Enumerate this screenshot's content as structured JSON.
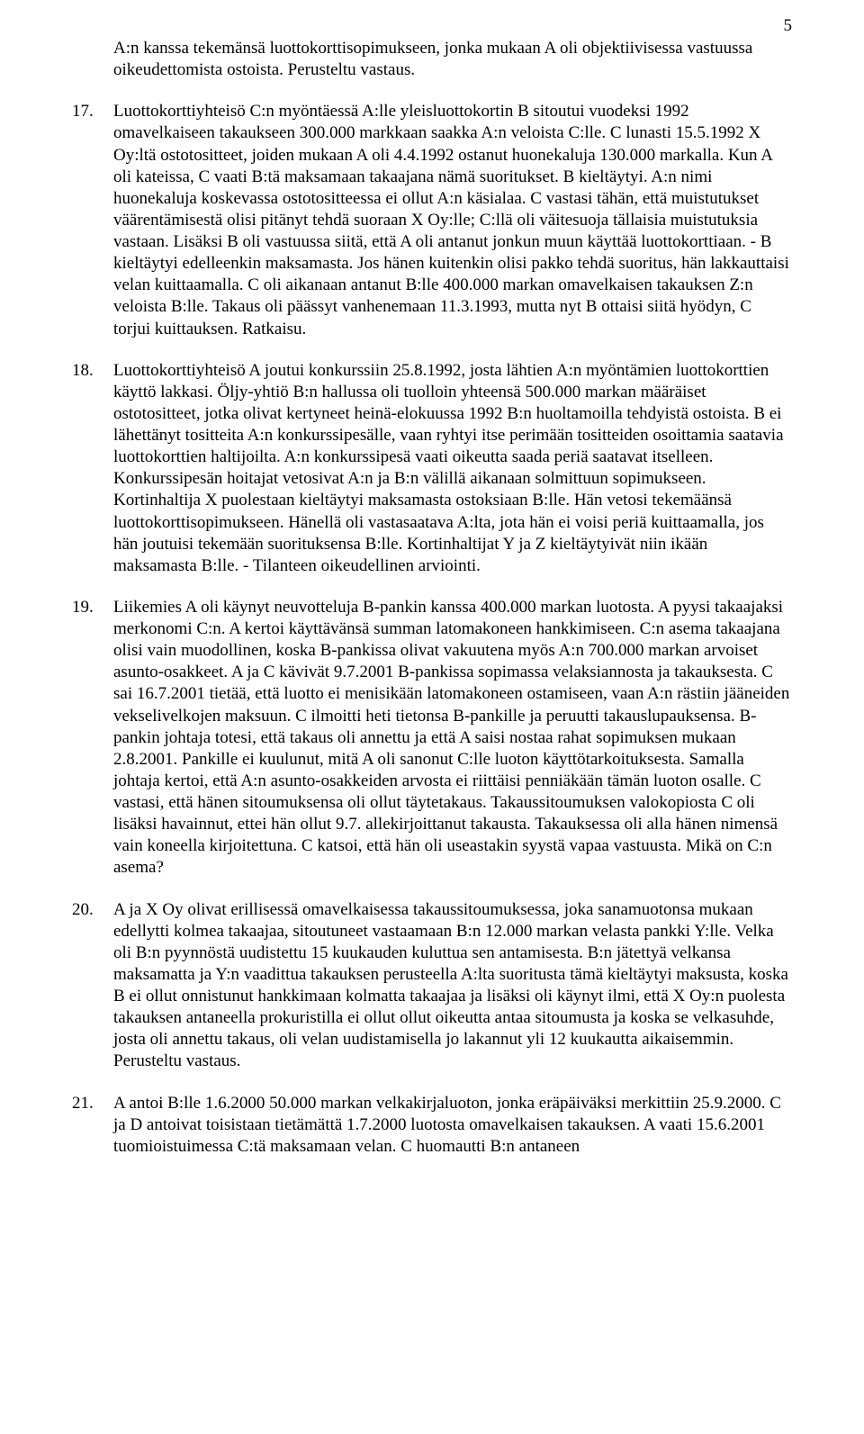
{
  "page_number": "5",
  "intro_fragment": "A:n kanssa tekemänsä luottokorttisopimukseen, jonka mukaan A oli objektiivisessa vastuussa oikeudettomista ostoista. Perusteltu vastaus.",
  "items": [
    {
      "num": "17.",
      "text": "Luottokorttiyhteisö C:n myöntäessä A:lle yleisluottokortin B sitoutui vuodeksi 1992 omavelkaiseen takaukseen 300.000 markkaan saakka A:n veloista C:lle. C lunasti 15.5.1992 X Oy:ltä ostotositteet, joiden mukaan A oli 4.4.1992 ostanut huonekaluja 130.000 markalla. Kun A oli kateissa, C vaati B:tä maksamaan takaajana nämä suoritukset. B kieltäytyi. A:n nimi huonekaluja koskevassa ostotositteessa ei ollut A:n käsialaa. C vastasi tähän, että muistutukset väärentämisestä olisi pitänyt tehdä suoraan X Oy:lle; C:llä oli väitesuoja tällaisia muistutuksia vastaan. Lisäksi B oli vastuussa siitä, että A oli antanut jonkun muun käyttää luottokorttiaan. - B kieltäytyi edelleenkin maksamasta. Jos hänen kuitenkin olisi pakko tehdä suoritus, hän lakkauttaisi velan kuittaamalla. C oli aikanaan antanut B:lle 400.000 markan omavelkaisen takauksen Z:n veloista B:lle. Takaus oli päässyt vanhenemaan 11.3.1993, mutta nyt B ottaisi siitä hyödyn, C torjui kuittauksen. Ratkaisu."
    },
    {
      "num": "18.",
      "text": "Luottokorttiyhteisö A joutui konkurssiin 25.8.1992, josta lähtien A:n myöntämien luottokorttien käyttö lakkasi. Öljy-yhtiö B:n hallussa oli tuolloin yhteensä 500.000 markan määräiset ostotositteet, jotka olivat kertyneet heinä-elokuussa 1992 B:n huoltamoilla tehdyistä ostoista. B ei lähettänyt tositteita A:n konkurssipesälle, vaan ryhtyi itse perimään tositteiden osoittamia saatavia luottokorttien haltijoilta. A:n konkurssipesä vaati oikeutta saada periä saatavat itselleen. Konkurssipesän hoitajat vetosivat A:n ja B:n välillä aikanaan solmittuun sopimukseen. Kortinhaltija X puolestaan kieltäytyi maksamasta ostoksiaan B:lle. Hän vetosi tekemäänsä luottokorttisopimukseen. Hänellä oli vastasaatava A:lta, jota hän ei voisi periä kuittaamalla, jos hän joutuisi tekemään suorituksensa B:lle. Kortinhaltijat Y ja Z kieltäytyivät niin ikään maksamasta B:lle. - Tilanteen oikeudellinen arviointi."
    },
    {
      "num": "19.",
      "text": "Liikemies A oli käynyt neuvotteluja B-pankin kanssa 400.000 markan luotosta. A pyysi takaajaksi merkonomi C:n. A kertoi käyttävänsä summan latomakoneen hankkimiseen. C:n asema takaajana olisi vain muodollinen, koska B-pankissa olivat vakuutena myös A:n 700.000 markan arvoiset asunto-osakkeet. A ja C kävivät 9.7.2001 B-pankissa sopimassa velaksiannosta ja takauksesta. C sai 16.7.2001 tietää, että luotto ei menisikään latomakoneen ostamiseen, vaan A:n rästiin jääneiden vekselivelkojen maksuun. C ilmoitti heti tietonsa B-pankille ja peruutti takauslupauksensa. B-pankin johtaja totesi, että takaus oli annettu ja että A saisi nostaa rahat sopimuksen mukaan 2.8.2001. Pankille ei kuulunut, mitä A oli sanonut C:lle luoton käyttötarkoituksesta. Samalla johtaja kertoi, että A:n asunto-osakkeiden arvosta ei riittäisi penniäkään tämän luoton osalle. C vastasi, että hänen sitoumuksensa oli ollut täytetakaus. Takaussitoumuksen valokopiosta C oli lisäksi havainnut, ettei hän ollut 9.7. allekirjoittanut takausta. Takauksessa oli alla hänen nimensä vain koneella kirjoitettuna. C katsoi, että hän oli useastakin syystä vapaa vastuusta. Mikä on C:n asema?"
    },
    {
      "num": "20.",
      "text": "A ja X Oy olivat erillisessä omavelkaisessa takaussitoumuksessa, joka sanamuotonsa mukaan edellytti kolmea takaajaa, sitoutuneet vastaamaan B:n 12.000 markan velasta pankki Y:lle. Velka oli B:n pyynnöstä uudistettu 15 kuukauden kuluttua sen antamisesta. B:n jätettyä velkansa maksamatta ja Y:n vaadittua takauksen perusteella A:lta suoritusta tämä kieltäytyi maksusta, koska B ei ollut onnistunut hankkimaan kolmatta takaajaa ja lisäksi oli käynyt ilmi, että X Oy:n puolesta takauksen antaneella prokuristilla ei ollut ollut oikeutta antaa sitoumusta ja koska se velkasuhde, josta oli annettu takaus, oli velan uudistamisella jo lakannut yli 12 kuukautta aikaisemmin. Perusteltu vastaus."
    },
    {
      "num": "21.",
      "text": "A antoi B:lle 1.6.2000 50.000 markan velkakirjaluoton, jonka eräpäiväksi merkittiin 25.9.2000. C ja D antoivat toisistaan tietämättä 1.7.2000 luotosta omavelkaisen takauksen. A vaati 15.6.2001 tuomioistuimessa C:tä maksamaan velan. C huomautti B:n antaneen"
    }
  ]
}
